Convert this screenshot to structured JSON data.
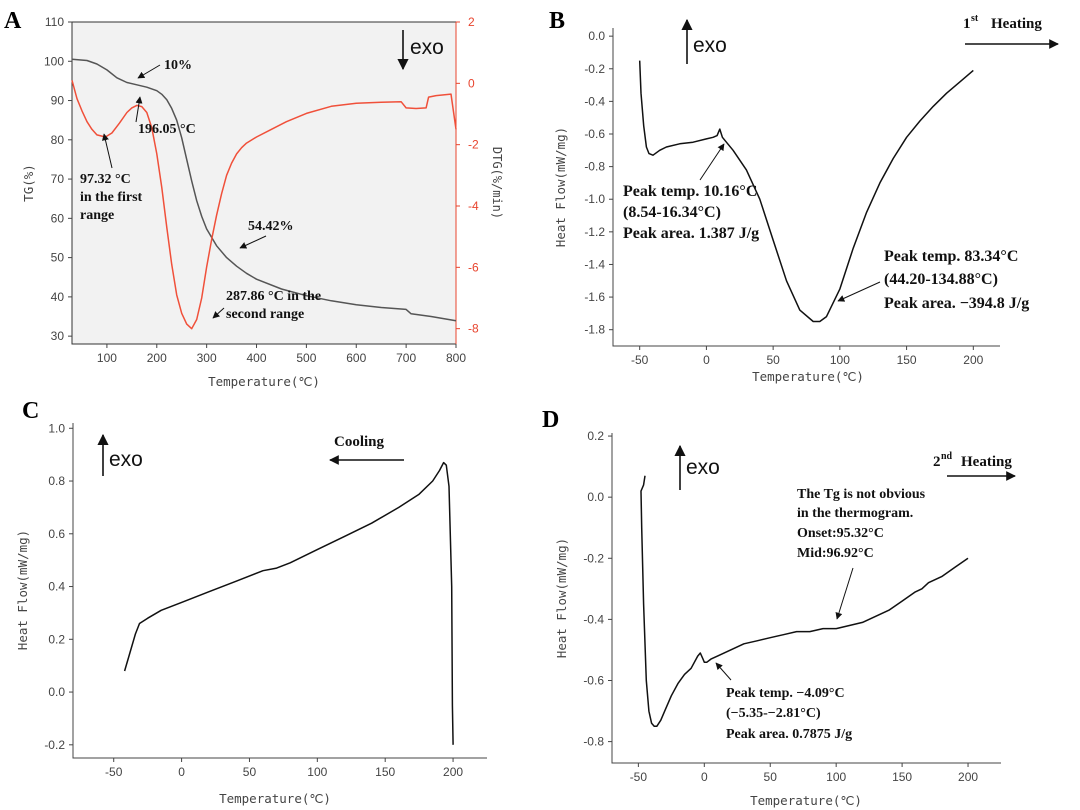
{
  "chart_data": [
    {
      "panel": "A",
      "type": "line",
      "xlabel": "Temperature(℃)",
      "ylabel_left": "TG(%)",
      "ylabel_right": "DTG(%/min)",
      "xlim": [
        30,
        800
      ],
      "ylim_left": [
        28,
        110
      ],
      "ylim_right": [
        -8.5,
        2
      ],
      "x_ticks": [
        "100",
        "200",
        "300",
        "400",
        "500",
        "600",
        "700",
        "800"
      ],
      "y_ticks_left": [
        "30",
        "40",
        "50",
        "60",
        "70",
        "80",
        "90",
        "100",
        "110"
      ],
      "y_ticks_right": [
        "-8",
        "-6",
        "-4",
        "-2",
        "0",
        "2"
      ],
      "exo_label": "exo",
      "series": [
        {
          "axis": "left",
          "color": "#555555",
          "x": [
            30,
            60,
            80,
            100,
            120,
            140,
            160,
            180,
            200,
            210,
            220,
            230,
            240,
            250,
            260,
            270,
            280,
            290,
            300,
            320,
            340,
            360,
            380,
            400,
            450,
            500,
            550,
            600,
            650,
            700,
            710,
            750,
            800
          ],
          "y": [
            100.5,
            100.2,
            99.3,
            97.8,
            95.8,
            94.6,
            94.0,
            93.4,
            92.5,
            91.6,
            90.2,
            88.0,
            85.0,
            80.5,
            75.0,
            69.5,
            64.5,
            60.5,
            57.3,
            53.0,
            50.0,
            47.8,
            46.0,
            44.5,
            42.0,
            40.3,
            39.0,
            38.0,
            37.3,
            36.8,
            35.7,
            35.0,
            33.9
          ]
        },
        {
          "axis": "right",
          "color": "#f0503a",
          "x": [
            30,
            40,
            50,
            60,
            70,
            80,
            97,
            110,
            125,
            140,
            150,
            160,
            170,
            180,
            190,
            200,
            210,
            220,
            230,
            240,
            250,
            260,
            270,
            280,
            290,
            300,
            310,
            320,
            330,
            340,
            350,
            360,
            370,
            380,
            400,
            430,
            460,
            500,
            550,
            600,
            650,
            690,
            700,
            720,
            740,
            745,
            760,
            790,
            800
          ],
          "y": [
            0.1,
            -0.5,
            -0.9,
            -1.25,
            -1.5,
            -1.68,
            -1.75,
            -1.62,
            -1.3,
            -0.95,
            -0.8,
            -0.72,
            -0.76,
            -0.95,
            -1.45,
            -2.3,
            -3.4,
            -4.7,
            -5.9,
            -6.9,
            -7.5,
            -7.85,
            -8.0,
            -7.7,
            -7.0,
            -6.0,
            -5.1,
            -4.3,
            -3.6,
            -3.0,
            -2.6,
            -2.3,
            -2.1,
            -1.95,
            -1.75,
            -1.5,
            -1.25,
            -0.98,
            -0.75,
            -0.65,
            -0.62,
            -0.6,
            -0.8,
            -0.82,
            -0.8,
            -0.45,
            -0.4,
            -0.35,
            -1.5
          ]
        }
      ],
      "annotations": {
        "a1": "10%",
        "a2": "196.05 °C",
        "a3": [
          "97.32 °C",
          "in the first",
          "range"
        ],
        "a4": "54.42%",
        "a5": [
          "287.86 °C in the",
          "second range"
        ]
      }
    },
    {
      "panel": "B",
      "type": "line",
      "xlabel": "Temperature(℃)",
      "ylabel": "Heat Flow(mW/mg)",
      "xlim": [
        -70,
        220
      ],
      "ylim": [
        -1.9,
        0.05
      ],
      "x_ticks": [
        "-50",
        "0",
        "50",
        "100",
        "150",
        "200"
      ],
      "y_ticks": [
        "0.0",
        "-0.2",
        "-0.4",
        "-0.6",
        "-0.8",
        "-1.0",
        "-1.2",
        "-1.4",
        "-1.6",
        "-1.8"
      ],
      "exo_label": "exo",
      "heading": "Heating",
      "heading_prefix": "1",
      "heading_sup": "st",
      "series": [
        {
          "color": "#111111",
          "x": [
            -50,
            -49,
            -47,
            -45,
            -43,
            -40,
            -35,
            -30,
            -20,
            -10,
            0,
            5,
            8,
            10,
            12,
            15,
            20,
            30,
            40,
            50,
            60,
            70,
            80,
            85,
            90,
            100,
            110,
            120,
            130,
            140,
            150,
            160,
            170,
            180,
            190,
            200
          ],
          "y": [
            -0.15,
            -0.35,
            -0.55,
            -0.68,
            -0.72,
            -0.73,
            -0.7,
            -0.68,
            -0.66,
            -0.65,
            -0.63,
            -0.62,
            -0.61,
            -0.57,
            -0.62,
            -0.65,
            -0.7,
            -0.82,
            -1.0,
            -1.25,
            -1.5,
            -1.68,
            -1.75,
            -1.75,
            -1.72,
            -1.55,
            -1.3,
            -1.08,
            -0.9,
            -0.75,
            -0.62,
            -0.52,
            -0.43,
            -0.35,
            -0.28,
            -0.21
          ]
        }
      ],
      "annotations": {
        "a1": [
          "Peak temp. 10.16°C",
          "(8.54-16.34°C)",
          "Peak area. 1.387 J/g"
        ],
        "a2": [
          "Peak temp. 83.34°C",
          "(44.20-134.88°C)",
          "Peak area. −394.8 J/g"
        ]
      }
    },
    {
      "panel": "C",
      "type": "line",
      "xlabel": "Temperature(℃)",
      "ylabel": "Heat Flow(mW/mg)",
      "xlim": [
        -80,
        225
      ],
      "ylim": [
        -0.25,
        1.02
      ],
      "x_ticks": [
        "-50",
        "0",
        "50",
        "100",
        "150",
        "200"
      ],
      "y_ticks": [
        "1.0",
        "0.8",
        "0.6",
        "0.4",
        "0.2",
        "0.0",
        "-0.2"
      ],
      "exo_label": "exo",
      "heading": "Cooling",
      "series": [
        {
          "color": "#111111",
          "x": [
            -42,
            -38,
            -34,
            -31,
            -25,
            -15,
            0,
            20,
            40,
            60,
            70,
            80,
            100,
            120,
            140,
            160,
            175,
            185,
            190,
            193,
            195,
            197,
            199,
            199.5,
            200
          ],
          "y": [
            0.08,
            0.15,
            0.22,
            0.26,
            0.28,
            0.31,
            0.34,
            0.38,
            0.42,
            0.46,
            0.47,
            0.49,
            0.54,
            0.59,
            0.64,
            0.7,
            0.75,
            0.8,
            0.84,
            0.87,
            0.86,
            0.78,
            0.4,
            -0.05,
            -0.2
          ]
        }
      ]
    },
    {
      "panel": "D",
      "type": "line",
      "xlabel": "Temperature(℃)",
      "ylabel": "Heat Flow(mW/mg)",
      "xlim": [
        -70,
        225
      ],
      "ylim": [
        -0.87,
        0.21
      ],
      "x_ticks": [
        "-50",
        "0",
        "50",
        "100",
        "150",
        "200"
      ],
      "y_ticks": [
        "0.2",
        "0.0",
        "-0.2",
        "-0.4",
        "-0.6",
        "-0.8"
      ],
      "exo_label": "exo",
      "heading": "Heating",
      "heading_prefix": "2",
      "heading_sup": "nd",
      "series": [
        {
          "color": "#111111",
          "x": [
            -45,
            -46,
            -47,
            -48,
            -47.5,
            -46,
            -44,
            -42,
            -40,
            -38,
            -36,
            -33,
            -30,
            -25,
            -20,
            -15,
            -10,
            -5,
            -3,
            -1,
            0,
            2,
            5,
            10,
            20,
            30,
            40,
            50,
            60,
            70,
            80,
            90,
            100,
            110,
            120,
            130,
            140,
            150,
            160,
            165,
            170,
            180,
            190,
            200
          ],
          "y": [
            0.07,
            0.04,
            0.03,
            0.02,
            -0.1,
            -0.35,
            -0.6,
            -0.7,
            -0.74,
            -0.75,
            -0.75,
            -0.73,
            -0.7,
            -0.65,
            -0.61,
            -0.58,
            -0.56,
            -0.52,
            -0.51,
            -0.53,
            -0.54,
            -0.54,
            -0.53,
            -0.52,
            -0.5,
            -0.48,
            -0.47,
            -0.46,
            -0.45,
            -0.44,
            -0.44,
            -0.43,
            -0.43,
            -0.42,
            -0.41,
            -0.39,
            -0.37,
            -0.34,
            -0.31,
            -0.3,
            -0.28,
            -0.26,
            -0.23,
            -0.2
          ]
        }
      ],
      "annotations": {
        "a1": [
          "The Tg is not obvious",
          "in the thermogram.",
          "Onset:95.32°C",
          "Mid:96.92°C"
        ],
        "a2": [
          "Peak temp. −4.09°C",
          "(−5.35-−2.81°C)",
          "Peak area. 0.7875 J/g"
        ]
      }
    }
  ]
}
